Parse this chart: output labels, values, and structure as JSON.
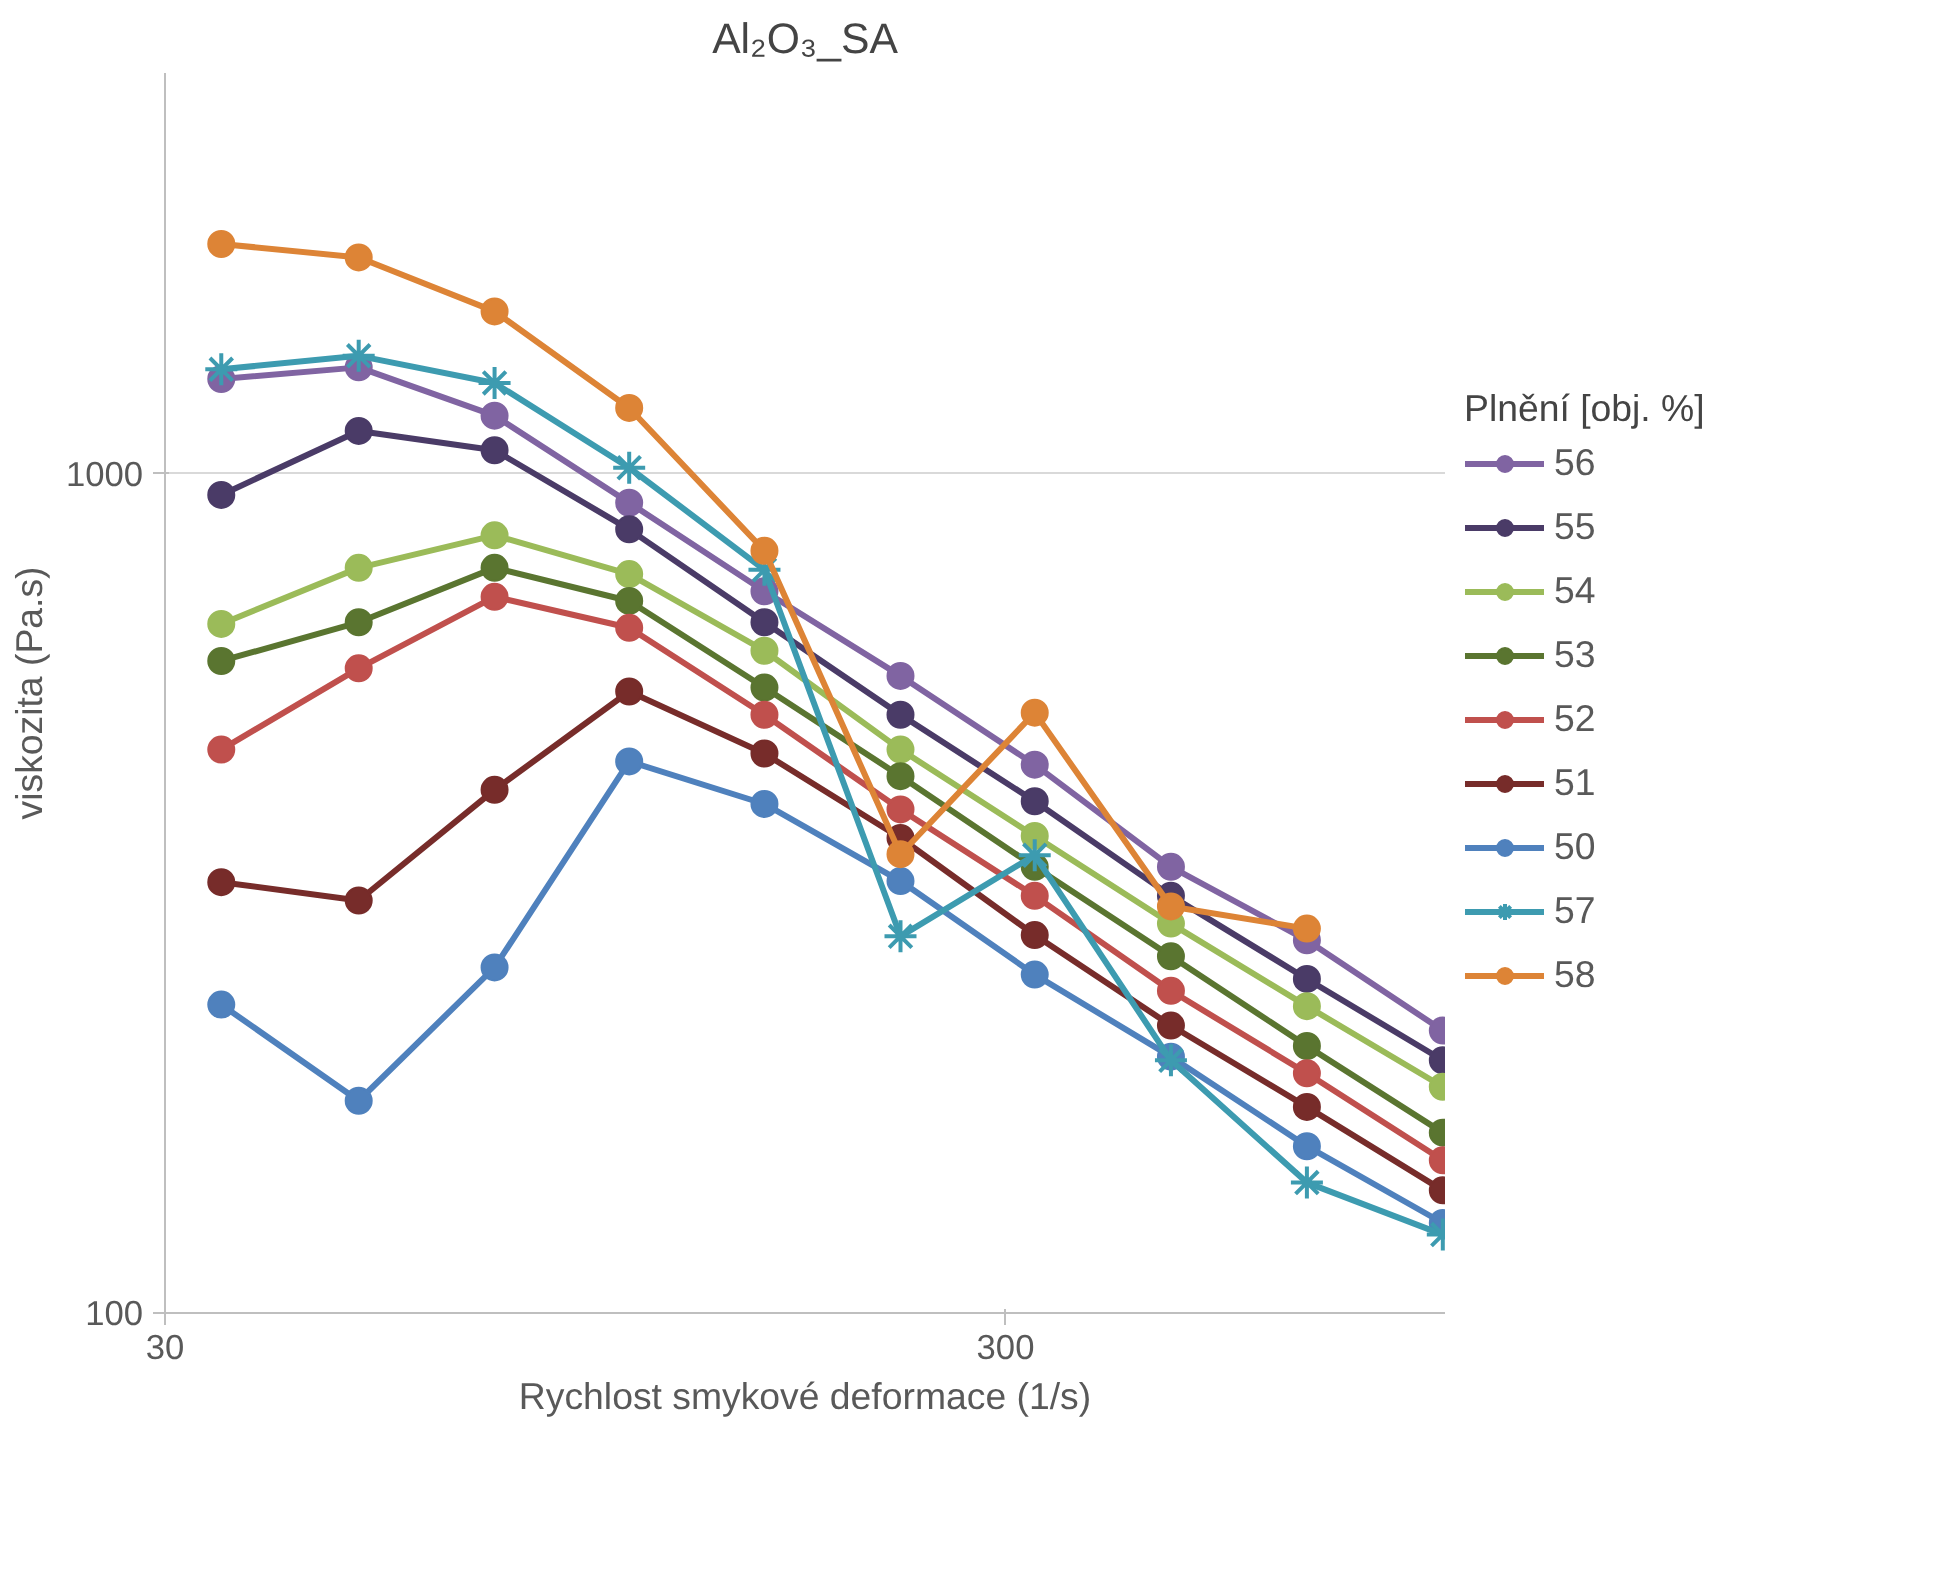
{
  "chart_data": {
    "type": "line",
    "title": "Al₂O₃_SA",
    "xlabel": "Rychlost smykové deformace (1/s)",
    "ylabel": "viskozita (Pa.s)",
    "legend_title": "Plnění [obj. %]",
    "x": [
      35,
      51,
      74,
      107,
      155,
      225,
      325,
      472,
      685,
      994
    ],
    "log": "xy",
    "xlim": [
      30,
      1000
    ],
    "ylim": [
      100,
      3000
    ],
    "xticks": [
      30,
      300
    ],
    "yticks": [
      100,
      1000
    ],
    "grid": "y",
    "legend": "right",
    "marker": "circle",
    "series": [
      {
        "name": "56",
        "color": "#8064a2",
        "values": [
          1296,
          1338,
          1172,
          923,
          724,
          574,
          450,
          340,
          278,
          217
        ]
      },
      {
        "name": "55",
        "color": "#4a3b67",
        "values": [
          943,
          1124,
          1066,
          858,
          665,
          516,
          407,
          314,
          250,
          200
        ]
      },
      {
        "name": "54",
        "color": "#9bbb59",
        "values": [
          662,
          772,
          844,
          759,
          615,
          469,
          370,
          291,
          232,
          186
        ]
      },
      {
        "name": "53",
        "color": "#5a7530",
        "values": [
          598,
          665,
          772,
          705,
          556,
          436,
          340,
          266,
          208,
          164
        ]
      },
      {
        "name": "52",
        "color": "#c0504d",
        "values": [
          469,
          586,
          713,
          655,
          516,
          398,
          314,
          242,
          193,
          152
        ]
      },
      {
        "name": "51",
        "color": "#772c2a",
        "values": [
          326,
          310,
          420,
          550,
          464,
          368,
          282,
          220,
          176,
          140
        ]
      },
      {
        "name": "50",
        "color": "#4f81bd",
        "values": [
          233,
          179,
          258,
          454,
          404,
          327,
          253,
          202,
          158,
          128
        ]
      },
      {
        "name": "57",
        "color": "#3d9bb0",
        "marker": "cross",
        "values": [
          1331,
          1381,
          1282,
          1016,
          768,
          281,
          351,
          200,
          143,
          124
        ]
      },
      {
        "name": "58",
        "color": "#dd8436",
        "values": [
          1877,
          1809,
          1560,
          1197,
          809,
          352,
          519,
          305,
          287,
          null
        ]
      }
    ]
  }
}
